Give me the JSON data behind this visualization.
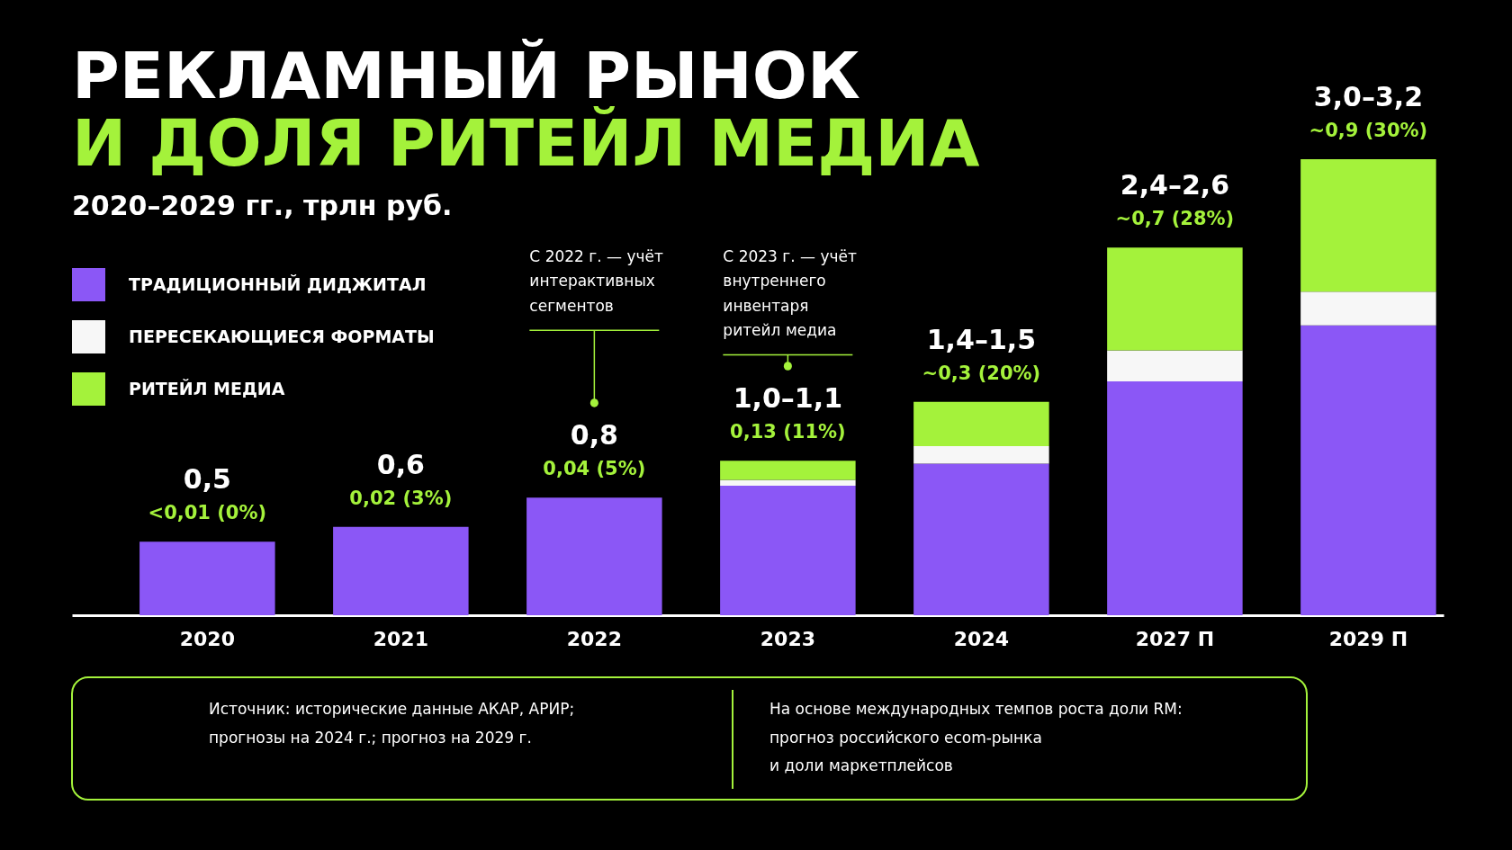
{
  "chart_data": {
    "type": "bar",
    "title": "РЕКЛАМНЫЙ РЫНОК\nИ ДОЛЯ РИТЕЙЛ МЕДИА",
    "subtitle": "2020–2029 гг., трлн руб.",
    "categories": [
      "2020",
      "2021",
      "2022",
      "2023",
      "2024",
      "2027 П",
      "2029 П"
    ],
    "series": [
      {
        "name": "ТРАДИЦИОННЫЙ ДИДЖИТАЛ",
        "color": "#8b57f6",
        "values": [
          0.5,
          0.6,
          0.8,
          0.88,
          1.03,
          1.59,
          1.97
        ]
      },
      {
        "name": "ПЕРЕСЕКАЮЩИЕСЯ ФОРМАТЫ",
        "color": "#f7f7f7",
        "values": [
          null,
          null,
          null,
          0.04,
          0.12,
          0.21,
          0.23
        ]
      },
      {
        "name": "РИТЕЙЛ МЕДИА",
        "color": "#a4f23b",
        "values": [
          null,
          null,
          null,
          0.13,
          0.3,
          0.7,
          0.9
        ],
        "value_labels": [
          "<0,01 (0%)",
          "0,02 (3%)",
          "0,04 (5%)",
          "0,13 (11%)",
          "~0,3 (20%)",
          "~0,7 (28%)",
          "~0,9 (30%)"
        ]
      }
    ],
    "stacked": true,
    "tick_labels": "x",
    "totals": [
      "0,5",
      "0,6",
      "0,8",
      "1,0–1,1",
      "1,4–1,5",
      "2,4–2,6",
      "3,0–3,2"
    ],
    "legend": "top left",
    "annotations": [
      {
        "text": "С 2022 г. — учёт\nинтерактивных\nсегментов",
        "x": "2022"
      },
      {
        "text": "С 2023 г. — учёт\nвнутреннего\nинвентаря\nритейл медиа",
        "x": "2023"
      },
      "Источник: исторические данные АКАР, АРИР;\nпрогнозы на 2024 г.; прогноз на 2029 г.",
      "На основе международных темпов роста доли RM:\nпрогноз российского ecom-рынка\nи доли маркетплейсов"
    ]
  }
}
